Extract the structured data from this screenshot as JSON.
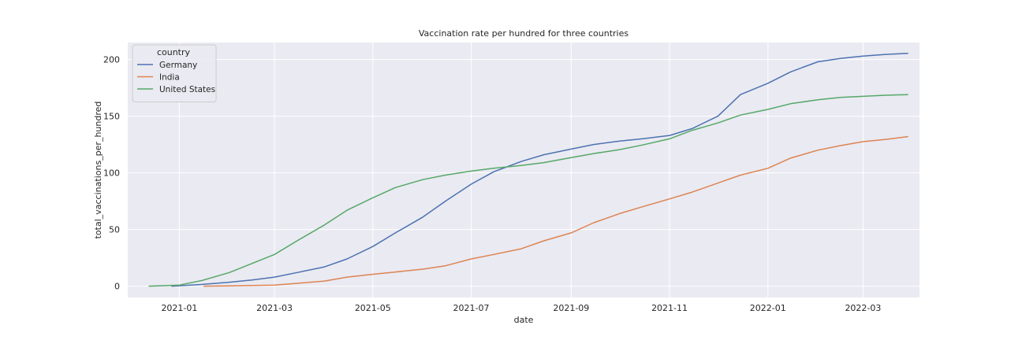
{
  "chart_data": {
    "type": "line",
    "title": "Vaccination rate per hundred for three countries",
    "xlabel": "date",
    "ylabel": "total_vaccinations_per_hundred",
    "xlim": [
      "2020-11-30",
      "2022-04-05"
    ],
    "ylim": [
      -10,
      215
    ],
    "x_ticks": [
      "2021-01",
      "2021-03",
      "2021-05",
      "2021-07",
      "2021-09",
      "2021-11",
      "2022-01",
      "2022-03"
    ],
    "y_ticks": [
      0,
      50,
      100,
      150,
      200
    ],
    "grid": true,
    "legend": {
      "title": "country",
      "placement": "top-left"
    },
    "series": [
      {
        "name": "Germany",
        "color": "#4c72b0",
        "points": [
          [
            "2020-12-27",
            0
          ],
          [
            "2021-01-15",
            1.5
          ],
          [
            "2021-02-01",
            3.5
          ],
          [
            "2021-02-15",
            5.5
          ],
          [
            "2021-03-01",
            8
          ],
          [
            "2021-03-15",
            12
          ],
          [
            "2021-04-01",
            17
          ],
          [
            "2021-04-15",
            24
          ],
          [
            "2021-05-01",
            35
          ],
          [
            "2021-05-15",
            47
          ],
          [
            "2021-06-01",
            61
          ],
          [
            "2021-06-15",
            75
          ],
          [
            "2021-07-01",
            90
          ],
          [
            "2021-07-15",
            101
          ],
          [
            "2021-08-01",
            110
          ],
          [
            "2021-08-15",
            116
          ],
          [
            "2021-09-01",
            121
          ],
          [
            "2021-09-15",
            125
          ],
          [
            "2021-10-01",
            128
          ],
          [
            "2021-10-15",
            130
          ],
          [
            "2021-11-01",
            133
          ],
          [
            "2021-11-15",
            139
          ],
          [
            "2021-12-01",
            150
          ],
          [
            "2021-12-15",
            169
          ],
          [
            "2022-01-01",
            179
          ],
          [
            "2022-01-15",
            189
          ],
          [
            "2022-02-01",
            198
          ],
          [
            "2022-02-15",
            201
          ],
          [
            "2022-03-01",
            203
          ],
          [
            "2022-03-15",
            204.5
          ],
          [
            "2022-03-29",
            205.5
          ]
        ]
      },
      {
        "name": "India",
        "color": "#dd8452",
        "points": [
          [
            "2021-01-16",
            0
          ],
          [
            "2021-02-01",
            0.3
          ],
          [
            "2021-02-15",
            0.6
          ],
          [
            "2021-03-01",
            1
          ],
          [
            "2021-03-15",
            2.5
          ],
          [
            "2021-04-01",
            4.5
          ],
          [
            "2021-04-15",
            8
          ],
          [
            "2021-05-01",
            10.5
          ],
          [
            "2021-05-15",
            12.5
          ],
          [
            "2021-06-01",
            15
          ],
          [
            "2021-06-15",
            18
          ],
          [
            "2021-07-01",
            24
          ],
          [
            "2021-07-15",
            28
          ],
          [
            "2021-08-01",
            33
          ],
          [
            "2021-08-15",
            40
          ],
          [
            "2021-09-01",
            47
          ],
          [
            "2021-09-15",
            56
          ],
          [
            "2021-10-01",
            64
          ],
          [
            "2021-10-15",
            70
          ],
          [
            "2021-11-01",
            77
          ],
          [
            "2021-11-15",
            83
          ],
          [
            "2021-12-01",
            91
          ],
          [
            "2021-12-15",
            98
          ],
          [
            "2022-01-01",
            104
          ],
          [
            "2022-01-15",
            113
          ],
          [
            "2022-02-01",
            120
          ],
          [
            "2022-02-15",
            124
          ],
          [
            "2022-03-01",
            127.5
          ],
          [
            "2022-03-15",
            129.5
          ],
          [
            "2022-03-29",
            132
          ]
        ]
      },
      {
        "name": "United States",
        "color": "#55a868",
        "points": [
          [
            "2020-12-13",
            0
          ],
          [
            "2021-01-01",
            1
          ],
          [
            "2021-01-15",
            5
          ],
          [
            "2021-02-01",
            12
          ],
          [
            "2021-02-15",
            20
          ],
          [
            "2021-03-01",
            28
          ],
          [
            "2021-03-15",
            40
          ],
          [
            "2021-04-01",
            54
          ],
          [
            "2021-04-15",
            67
          ],
          [
            "2021-05-01",
            78
          ],
          [
            "2021-05-15",
            87
          ],
          [
            "2021-06-01",
            94
          ],
          [
            "2021-06-15",
            98
          ],
          [
            "2021-07-01",
            101.5
          ],
          [
            "2021-07-15",
            104
          ],
          [
            "2021-08-01",
            106.5
          ],
          [
            "2021-08-15",
            109
          ],
          [
            "2021-09-01",
            113.5
          ],
          [
            "2021-09-15",
            117
          ],
          [
            "2021-10-01",
            120.5
          ],
          [
            "2021-10-15",
            124.5
          ],
          [
            "2021-11-01",
            130
          ],
          [
            "2021-11-15",
            137.5
          ],
          [
            "2021-12-01",
            144
          ],
          [
            "2021-12-15",
            151
          ],
          [
            "2022-01-01",
            156
          ],
          [
            "2022-01-15",
            161
          ],
          [
            "2022-02-01",
            164.5
          ],
          [
            "2022-02-15",
            166.5
          ],
          [
            "2022-03-01",
            167.5
          ],
          [
            "2022-03-15",
            168.5
          ],
          [
            "2022-03-29",
            169
          ]
        ]
      }
    ]
  }
}
